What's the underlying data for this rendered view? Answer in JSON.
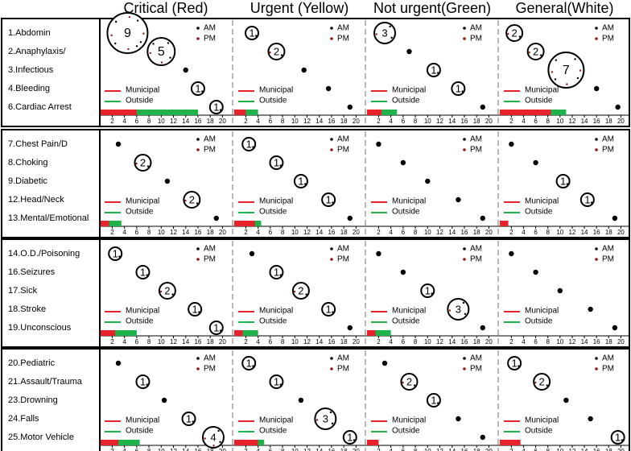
{
  "chart_data": {
    "type": "scatter",
    "columns": [
      "Critical (Red)",
      "Urgent (Yellow)",
      "Not urgent(Green)",
      "General(White)"
    ],
    "legend": {
      "am": "AM",
      "pm": "PM",
      "municipal": "Municipal",
      "outside": "Outside"
    },
    "x_ticks": [
      2,
      4,
      6,
      8,
      10,
      12,
      14,
      16,
      18,
      20
    ],
    "xlim": [
      0.5,
      21
    ],
    "groups": [
      {
        "labels": [
          "1.Abdomin",
          "2.Anaphylaxis/",
          "3.Infectious",
          "4.Bleeding",
          "6.Cardiac Arrest"
        ],
        "cells": [
          {
            "points": [
              {
                "x": 4.5,
                "row": 0,
                "n": 9
              },
              {
                "x": 10,
                "row": 1,
                "n": 5
              },
              {
                "x": 14,
                "row": 2,
                "n": 0
              },
              {
                "x": 16,
                "row": 3,
                "n": 1
              },
              {
                "x": 19,
                "row": 4,
                "n": 1
              }
            ],
            "bar": {
              "municipal": 6,
              "outside": 16
            }
          },
          {
            "points": [
              {
                "x": 3,
                "row": 0,
                "n": 1
              },
              {
                "x": 7,
                "row": 1,
                "n": 2
              },
              {
                "x": 11.5,
                "row": 2,
                "n": 0
              },
              {
                "x": 15.5,
                "row": 3,
                "n": 0
              },
              {
                "x": 19,
                "row": 4,
                "n": 0
              }
            ],
            "bar": {
              "municipal": 2,
              "outside": 4
            }
          },
          {
            "points": [
              {
                "x": 3,
                "row": 0,
                "n": 3
              },
              {
                "x": 7,
                "row": 1,
                "n": 0
              },
              {
                "x": 11,
                "row": 2,
                "n": 1
              },
              {
                "x": 15,
                "row": 3,
                "n": 1
              },
              {
                "x": 19,
                "row": 4,
                "n": 0
              }
            ],
            "bar": {
              "municipal": 2.5,
              "outside": 5
            }
          },
          {
            "points": [
              {
                "x": 2.5,
                "row": 0,
                "n": 2
              },
              {
                "x": 6,
                "row": 1,
                "n": 2
              },
              {
                "x": 11,
                "row": 2,
                "n": 7
              },
              {
                "x": 16,
                "row": 3,
                "n": 0
              },
              {
                "x": 19.5,
                "row": 4,
                "n": 0
              }
            ],
            "bar": {
              "municipal": 8.5,
              "outside": 11
            }
          }
        ]
      },
      {
        "labels": [
          "7.Chest Pain/D",
          "8.Choking",
          "9.Diabetic",
          "12.Head/Neck",
          "13.Mental/Emotional"
        ],
        "cells": [
          {
            "points": [
              {
                "x": 3,
                "row": 0,
                "n": 0
              },
              {
                "x": 7,
                "row": 1,
                "n": 2
              },
              {
                "x": 11,
                "row": 2,
                "n": 0
              },
              {
                "x": 15,
                "row": 3,
                "n": 2
              },
              {
                "x": 19,
                "row": 4,
                "n": 0
              }
            ],
            "bar": {
              "municipal": 1.5,
              "outside": 3.5
            }
          },
          {
            "points": [
              {
                "x": 2.5,
                "row": 0,
                "n": 1
              },
              {
                "x": 7,
                "row": 1,
                "n": 1
              },
              {
                "x": 11,
                "row": 2,
                "n": 1
              },
              {
                "x": 15.5,
                "row": 3,
                "n": 1
              },
              {
                "x": 19,
                "row": 4,
                "n": 0
              }
            ],
            "bar": {
              "municipal": 3.5,
              "outside": 4.5
            }
          },
          {
            "points": [
              {
                "x": 2,
                "row": 0,
                "n": 0
              },
              {
                "x": 6,
                "row": 1,
                "n": 0
              },
              {
                "x": 10,
                "row": 2,
                "n": 0
              },
              {
                "x": 15,
                "row": 3,
                "n": 0
              },
              {
                "x": 19,
                "row": 4,
                "n": 0
              }
            ],
            "bar": {
              "municipal": 0,
              "outside": 0
            }
          },
          {
            "points": [
              {
                "x": 2,
                "row": 0,
                "n": 0
              },
              {
                "x": 6,
                "row": 1,
                "n": 0
              },
              {
                "x": 10.5,
                "row": 2,
                "n": 1
              },
              {
                "x": 14.5,
                "row": 3,
                "n": 1
              },
              {
                "x": 19,
                "row": 4,
                "n": 0
              }
            ],
            "bar": {
              "municipal": 1.5,
              "outside": 0
            }
          }
        ]
      },
      {
        "labels": [
          "14.O.D./Poisoning",
          "16.Seizures",
          "17.Sick",
          "18.Stroke",
          "19.Unconscious"
        ],
        "cells": [
          {
            "points": [
              {
                "x": 2.5,
                "row": 0,
                "n": 1
              },
              {
                "x": 7,
                "row": 1,
                "n": 1
              },
              {
                "x": 11,
                "row": 2,
                "n": 2
              },
              {
                "x": 15.5,
                "row": 3,
                "n": 1
              },
              {
                "x": 19,
                "row": 4,
                "n": 1
              }
            ],
            "bar": {
              "municipal": 2.5,
              "outside": 6
            }
          },
          {
            "points": [
              {
                "x": 3,
                "row": 0,
                "n": 0
              },
              {
                "x": 7,
                "row": 1,
                "n": 1
              },
              {
                "x": 11,
                "row": 2,
                "n": 2
              },
              {
                "x": 15.5,
                "row": 3,
                "n": 1
              },
              {
                "x": 19,
                "row": 4,
                "n": 0
              }
            ],
            "bar": {
              "municipal": 1.5,
              "outside": 4
            }
          },
          {
            "points": [
              {
                "x": 2,
                "row": 0,
                "n": 0
              },
              {
                "x": 6,
                "row": 1,
                "n": 0
              },
              {
                "x": 10,
                "row": 2,
                "n": 1
              },
              {
                "x": 15,
                "row": 3,
                "n": 3
              },
              {
                "x": 19,
                "row": 4,
                "n": 0
              }
            ],
            "bar": {
              "municipal": 1.5,
              "outside": 4
            }
          },
          {
            "points": [
              {
                "x": 2,
                "row": 0,
                "n": 0
              },
              {
                "x": 6,
                "row": 1,
                "n": 0
              },
              {
                "x": 10,
                "row": 2,
                "n": 0
              },
              {
                "x": 15,
                "row": 3,
                "n": 0
              },
              {
                "x": 19,
                "row": 4,
                "n": 0
              }
            ],
            "bar": {
              "municipal": 0,
              "outside": 0
            }
          }
        ]
      },
      {
        "labels": [
          "20.Pediatric",
          "21.Assault/Trauma",
          "23.Drowning",
          "24.Falls",
          "25.Motor Vehicle"
        ],
        "cells": [
          {
            "points": [
              {
                "x": 3,
                "row": 0,
                "n": 0
              },
              {
                "x": 7,
                "row": 1,
                "n": 1
              },
              {
                "x": 10.5,
                "row": 2,
                "n": 0
              },
              {
                "x": 14.5,
                "row": 3,
                "n": 1
              },
              {
                "x": 18.5,
                "row": 4,
                "n": 4
              }
            ],
            "bar": {
              "municipal": 3,
              "outside": 6.5
            }
          },
          {
            "points": [
              {
                "x": 2.5,
                "row": 0,
                "n": 1
              },
              {
                "x": 7,
                "row": 1,
                "n": 1
              },
              {
                "x": 11,
                "row": 2,
                "n": 0
              },
              {
                "x": 15,
                "row": 3,
                "n": 3
              },
              {
                "x": 19,
                "row": 4,
                "n": 1
              }
            ],
            "bar": {
              "municipal": 4,
              "outside": 5
            }
          },
          {
            "points": [
              {
                "x": 3,
                "row": 0,
                "n": 0
              },
              {
                "x": 7,
                "row": 1,
                "n": 2
              },
              {
                "x": 11,
                "row": 2,
                "n": 1
              },
              {
                "x": 15,
                "row": 3,
                "n": 0
              },
              {
                "x": 19,
                "row": 4,
                "n": 0
              }
            ],
            "bar": {
              "municipal": 2,
              "outside": 0
            }
          },
          {
            "points": [
              {
                "x": 2.5,
                "row": 0,
                "n": 1
              },
              {
                "x": 7,
                "row": 1,
                "n": 2
              },
              {
                "x": 11,
                "row": 2,
                "n": 0
              },
              {
                "x": 15,
                "row": 3,
                "n": 0
              },
              {
                "x": 19.5,
                "row": 4,
                "n": 1
              }
            ],
            "bar": {
              "municipal": 3.5,
              "outside": 0
            }
          }
        ]
      }
    ],
    "colors": {
      "am": "#000000",
      "pm": "#8b1a1a",
      "municipal": "#e8222a",
      "outside": "#1db34a",
      "panel_border": "#000000",
      "divider": "#b8b8b8"
    }
  }
}
